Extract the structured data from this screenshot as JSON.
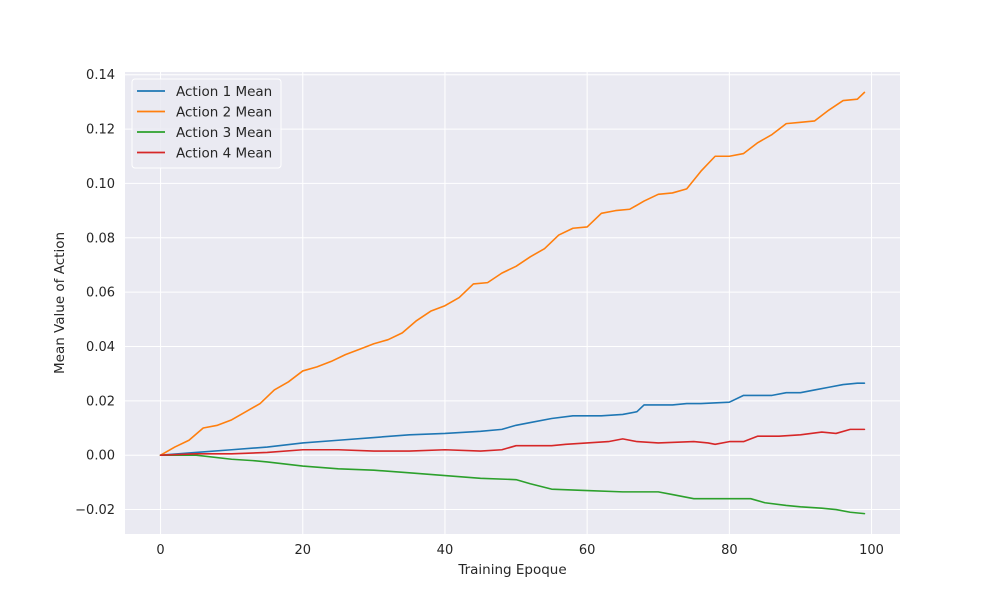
{
  "chart_data": {
    "type": "line",
    "title": "",
    "xlabel": "Training Epoque",
    "ylabel": "Mean Value of Action",
    "xlim": [
      -5,
      104
    ],
    "ylim": [
      -0.029,
      0.141
    ],
    "xticks": [
      0,
      20,
      40,
      60,
      80,
      100
    ],
    "yticks": [
      -0.02,
      0.0,
      0.02,
      0.04,
      0.06,
      0.08,
      0.1,
      0.12,
      0.14
    ],
    "xtick_labels": [
      "0",
      "20",
      "40",
      "60",
      "80",
      "100"
    ],
    "ytick_labels": [
      "−0.02",
      "0.00",
      "0.02",
      "0.04",
      "0.06",
      "0.08",
      "0.10",
      "0.12",
      "0.14"
    ],
    "grid": true,
    "legend_position": "top-left",
    "background": "#eaeaf2",
    "series": [
      {
        "name": "Action 1 Mean",
        "color": "#1f77b4",
        "x": [
          0,
          5,
          10,
          15,
          20,
          25,
          30,
          35,
          40,
          45,
          48,
          50,
          52,
          55,
          58,
          60,
          62,
          65,
          67,
          68,
          70,
          72,
          74,
          76,
          80,
          82,
          84,
          86,
          88,
          90,
          92,
          94,
          96,
          98,
          99
        ],
        "y": [
          0.0,
          0.001,
          0.002,
          0.003,
          0.0045,
          0.0055,
          0.0065,
          0.0075,
          0.008,
          0.0088,
          0.0095,
          0.011,
          0.012,
          0.0135,
          0.0145,
          0.0145,
          0.0145,
          0.015,
          0.016,
          0.0185,
          0.0185,
          0.0185,
          0.019,
          0.019,
          0.0195,
          0.022,
          0.022,
          0.022,
          0.023,
          0.023,
          0.024,
          0.025,
          0.026,
          0.0265,
          0.0265
        ]
      },
      {
        "name": "Action 2 Mean",
        "color": "#ff7f0e",
        "x": [
          0,
          2,
          4,
          6,
          8,
          10,
          12,
          14,
          16,
          18,
          20,
          22,
          24,
          26,
          28,
          30,
          32,
          34,
          36,
          38,
          40,
          42,
          44,
          46,
          48,
          50,
          52,
          54,
          56,
          58,
          60,
          62,
          64,
          66,
          68,
          70,
          72,
          74,
          76,
          78,
          80,
          82,
          84,
          86,
          88,
          90,
          92,
          94,
          96,
          98,
          99
        ],
        "y": [
          0.0,
          0.003,
          0.0055,
          0.01,
          0.011,
          0.013,
          0.016,
          0.019,
          0.024,
          0.027,
          0.031,
          0.0325,
          0.0345,
          0.037,
          0.039,
          0.041,
          0.0425,
          0.045,
          0.0495,
          0.053,
          0.055,
          0.058,
          0.063,
          0.0635,
          0.067,
          0.0695,
          0.073,
          0.076,
          0.081,
          0.0835,
          0.084,
          0.089,
          0.09,
          0.0905,
          0.0935,
          0.096,
          0.0965,
          0.098,
          0.1045,
          0.11,
          0.11,
          0.111,
          0.115,
          0.118,
          0.122,
          0.1225,
          0.123,
          0.127,
          0.1305,
          0.131,
          0.1335
        ]
      },
      {
        "name": "Action 3 Mean",
        "color": "#2ca02c",
        "x": [
          0,
          5,
          10,
          13,
          15,
          20,
          25,
          30,
          35,
          40,
          45,
          50,
          52,
          55,
          60,
          65,
          70,
          72,
          75,
          80,
          83,
          85,
          88,
          90,
          93,
          95,
          97,
          99
        ],
        "y": [
          0.0,
          0.0,
          -0.0015,
          -0.002,
          -0.0025,
          -0.004,
          -0.005,
          -0.0055,
          -0.0065,
          -0.0075,
          -0.0085,
          -0.009,
          -0.0105,
          -0.0125,
          -0.013,
          -0.0135,
          -0.0135,
          -0.0145,
          -0.016,
          -0.016,
          -0.016,
          -0.0175,
          -0.0185,
          -0.019,
          -0.0195,
          -0.02,
          -0.021,
          -0.0215
        ]
      },
      {
        "name": "Action 4 Mean",
        "color": "#d62728",
        "x": [
          0,
          5,
          10,
          15,
          20,
          25,
          30,
          35,
          40,
          45,
          48,
          50,
          52,
          55,
          57,
          60,
          63,
          65,
          67,
          70,
          75,
          77,
          78,
          80,
          82,
          84,
          87,
          90,
          93,
          95,
          97,
          99
        ],
        "y": [
          0.0,
          0.0005,
          0.0005,
          0.001,
          0.002,
          0.002,
          0.0015,
          0.0015,
          0.002,
          0.0015,
          0.002,
          0.0035,
          0.0035,
          0.0035,
          0.004,
          0.0045,
          0.005,
          0.006,
          0.005,
          0.0045,
          0.005,
          0.0045,
          0.004,
          0.005,
          0.005,
          0.007,
          0.007,
          0.0075,
          0.0085,
          0.008,
          0.0095,
          0.0095
        ]
      }
    ]
  }
}
